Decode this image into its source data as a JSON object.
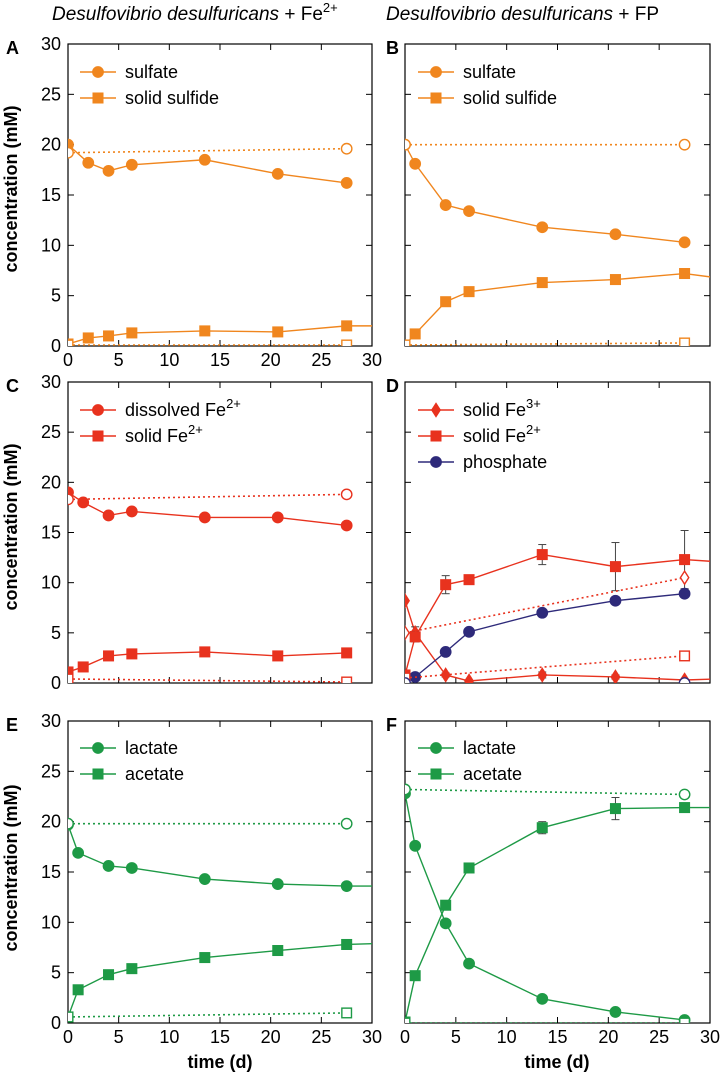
{
  "figure": {
    "titles": {
      "left": {
        "organism": "Desulfovibrio desulfuricans",
        "suffix": " + Fe",
        "sup": "2+"
      },
      "right": {
        "organism": "Desulfovibrio desulfuricans",
        "suffix": " + FP",
        "sup": ""
      }
    },
    "ylabel": "concentration (mM)",
    "xlabel": "time (d)",
    "colors": {
      "orange": "#f0861e",
      "red": "#e8321e",
      "navy": "#2e2a7a",
      "green": "#1e9a46",
      "black": "#000000"
    }
  },
  "chart_data": [
    {
      "panel": "A",
      "type": "line",
      "color_key": "orange",
      "xlim": [
        0,
        30
      ],
      "ylim": [
        0,
        30
      ],
      "xticks": [
        "0",
        "5",
        "10",
        "15",
        "20",
        "25",
        "30"
      ],
      "yticks": [
        "0",
        "5",
        "10",
        "15",
        "20",
        "25",
        "30"
      ],
      "series": [
        {
          "name": "sulfate",
          "marker": "circle",
          "filled": true,
          "line": "solid",
          "legend": true,
          "x": [
            0,
            2,
            4,
            6.3,
            13.5,
            20.7,
            27.5
          ],
          "y": [
            20,
            18.2,
            17.4,
            18,
            18.5,
            17.1,
            16.2
          ]
        },
        {
          "name": "solid sulfide",
          "marker": "square",
          "filled": true,
          "line": "solid",
          "legend": true,
          "x": [
            0,
            2,
            4,
            6.3,
            13.5,
            20.7,
            27.5,
            30.5
          ],
          "y": [
            0.2,
            0.8,
            1,
            1.3,
            1.5,
            1.4,
            2,
            2
          ]
        },
        {
          "name": "sulfate control",
          "marker": "circle",
          "filled": false,
          "line": "dotted",
          "legend": false,
          "x": [
            0,
            27.5
          ],
          "y": [
            19.2,
            19.6
          ]
        },
        {
          "name": "solid sulfide control",
          "marker": "square",
          "filled": false,
          "line": "dotted",
          "legend": false,
          "x": [
            0,
            27.5
          ],
          "y": [
            0.1,
            0.1
          ]
        }
      ]
    },
    {
      "panel": "B",
      "type": "line",
      "color_key": "orange",
      "xlim": [
        0,
        30
      ],
      "ylim": [
        0,
        30
      ],
      "series": [
        {
          "name": "sulfate",
          "marker": "circle",
          "filled": true,
          "line": "solid",
          "legend": true,
          "x": [
            0,
            1,
            4,
            6.3,
            13.5,
            20.7,
            27.5
          ],
          "y": [
            20,
            18.1,
            14,
            13.4,
            11.8,
            11.1,
            10.3
          ]
        },
        {
          "name": "solid sulfide",
          "marker": "square",
          "filled": true,
          "line": "solid",
          "legend": true,
          "x": [
            0,
            1,
            4,
            6.3,
            13.5,
            20.7,
            27.5,
            30.5
          ],
          "y": [
            0.1,
            1.2,
            4.4,
            5.4,
            6.3,
            6.6,
            7.2,
            6.8
          ]
        },
        {
          "name": "sulfate control",
          "marker": "circle",
          "filled": false,
          "line": "dotted",
          "legend": false,
          "x": [
            0,
            27.5
          ],
          "y": [
            20,
            20
          ]
        },
        {
          "name": "solid sulfide control",
          "marker": "square",
          "filled": false,
          "line": "dotted",
          "legend": false,
          "x": [
            0,
            27.5
          ],
          "y": [
            0.1,
            0.3
          ]
        }
      ]
    },
    {
      "panel": "C",
      "type": "line",
      "color_key": "red",
      "xlim": [
        0,
        30
      ],
      "ylim": [
        0,
        30
      ],
      "yticks": [
        "0",
        "5",
        "10",
        "15",
        "20",
        "25",
        "30"
      ],
      "series": [
        {
          "name": "dissolved Fe",
          "sup": "2+",
          "marker": "circle",
          "filled": true,
          "line": "solid",
          "legend": true,
          "x": [
            0,
            1.5,
            4,
            6.3,
            13.5,
            20.7,
            27.5
          ],
          "y": [
            19,
            18,
            16.7,
            17.1,
            16.5,
            16.5,
            15.7
          ]
        },
        {
          "name": "solid Fe",
          "sup": "2+",
          "marker": "square",
          "filled": true,
          "line": "solid",
          "legend": true,
          "x": [
            0,
            1.5,
            4,
            6.3,
            13.5,
            20.7,
            27.5
          ],
          "y": [
            1.1,
            1.6,
            2.7,
            2.9,
            3.1,
            2.7,
            3
          ]
        },
        {
          "name": "dissolved Fe control",
          "marker": "circle",
          "filled": false,
          "line": "dotted",
          "legend": false,
          "x": [
            0,
            27.5
          ],
          "y": [
            18.3,
            18.8
          ]
        },
        {
          "name": "solid Fe control",
          "marker": "square",
          "filled": false,
          "line": "dotted",
          "legend": false,
          "x": [
            0,
            27.5
          ],
          "y": [
            0.4,
            0.1
          ]
        }
      ]
    },
    {
      "panel": "D",
      "type": "line",
      "color_key": "red",
      "xlim": [
        0,
        30
      ],
      "ylim": [
        0,
        30
      ],
      "series": [
        {
          "name": "solid Fe",
          "sup": "3+",
          "marker": "diamond",
          "filled": true,
          "line": "solid",
          "legend": true,
          "color_key": "red",
          "x": [
            0,
            1,
            4,
            6.3,
            13.5,
            20.7,
            27.5,
            30.5
          ],
          "y": [
            8.2,
            5,
            0.8,
            0.2,
            0.8,
            0.6,
            0.3,
            0.4
          ],
          "err": [
            0,
            0.6,
            0.2,
            0,
            0.3,
            0.2,
            0,
            0
          ]
        },
        {
          "name": "solid Fe",
          "sup": "2+",
          "marker": "square",
          "filled": true,
          "line": "solid",
          "legend": true,
          "color_key": "red",
          "x": [
            0,
            1,
            4,
            6.3,
            13.5,
            20.7,
            27.5,
            30.5
          ],
          "y": [
            0.8,
            4.6,
            9.8,
            10.3,
            12.8,
            11.6,
            12.3,
            12.1
          ],
          "err": [
            0,
            0.5,
            0.9,
            0.4,
            1,
            2.4,
            2.9,
            0
          ]
        },
        {
          "name": "phosphate",
          "marker": "circle",
          "filled": true,
          "line": "solid",
          "legend": true,
          "color_key": "navy",
          "x": [
            0,
            1,
            4,
            6.3,
            13.5,
            20.7,
            27.5
          ],
          "y": [
            0,
            0.6,
            3.1,
            5.1,
            7,
            8.2,
            8.9
          ],
          "err": [
            0,
            0,
            0,
            0,
            0,
            0,
            0
          ]
        },
        {
          "name": "solid Fe3+ control",
          "marker": "diamond",
          "filled": false,
          "line": "dotted",
          "legend": false,
          "color_key": "red",
          "x": [
            0,
            27.5
          ],
          "y": [
            5,
            10.5
          ]
        },
        {
          "name": "solid Fe2+ control",
          "marker": "square",
          "filled": false,
          "line": "dotted",
          "legend": false,
          "color_key": "red",
          "x": [
            0,
            27.5
          ],
          "y": [
            0.5,
            2.7
          ]
        },
        {
          "name": "phosphate control",
          "marker": "circle",
          "filled": false,
          "line": "none",
          "legend": false,
          "color_key": "navy",
          "x": [
            0,
            27.5
          ],
          "y": [
            0,
            0
          ]
        }
      ]
    },
    {
      "panel": "E",
      "type": "line",
      "color_key": "green",
      "xlim": [
        0,
        30
      ],
      "ylim": [
        0,
        30
      ],
      "xticks": [
        "0",
        "5",
        "10",
        "15",
        "20",
        "25",
        "30"
      ],
      "yticks": [
        "0",
        "5",
        "10",
        "15",
        "20",
        "25",
        "30"
      ],
      "series": [
        {
          "name": "lactate",
          "marker": "circle",
          "filled": true,
          "line": "solid",
          "legend": true,
          "x": [
            0,
            1,
            4,
            6.3,
            13.5,
            20.7,
            27.5,
            30.5
          ],
          "y": [
            19.7,
            16.9,
            15.6,
            15.4,
            14.3,
            13.8,
            13.6,
            13.6
          ]
        },
        {
          "name": "acetate",
          "marker": "square",
          "filled": true,
          "line": "solid",
          "legend": true,
          "x": [
            0,
            1,
            4,
            6.3,
            13.5,
            20.7,
            27.5,
            30.5
          ],
          "y": [
            0.6,
            3.3,
            4.8,
            5.4,
            6.5,
            7.2,
            7.8,
            7.9
          ]
        },
        {
          "name": "lactate control",
          "marker": "circle",
          "filled": false,
          "line": "dotted",
          "legend": false,
          "x": [
            0,
            27.5
          ],
          "y": [
            19.8,
            19.8
          ]
        },
        {
          "name": "acetate control",
          "marker": "square",
          "filled": false,
          "line": "dotted",
          "legend": false,
          "x": [
            0,
            27.5
          ],
          "y": [
            0.6,
            1
          ]
        }
      ]
    },
    {
      "panel": "F",
      "type": "line",
      "color_key": "green",
      "xlim": [
        0,
        30
      ],
      "ylim": [
        0,
        30
      ],
      "xticks": [
        "0",
        "5",
        "10",
        "15",
        "20",
        "25",
        "30"
      ],
      "series": [
        {
          "name": "lactate",
          "marker": "circle",
          "filled": true,
          "line": "solid",
          "legend": true,
          "x": [
            0,
            1,
            4,
            6.3,
            13.5,
            20.7,
            27.5
          ],
          "y": [
            22.8,
            17.6,
            9.9,
            5.9,
            2.4,
            1.1,
            0.3
          ],
          "err": [
            0,
            0,
            0,
            0,
            0,
            0,
            0
          ]
        },
        {
          "name": "acetate",
          "marker": "square",
          "filled": true,
          "line": "solid",
          "legend": true,
          "x": [
            0,
            1,
            4,
            6.3,
            13.5,
            20.7,
            27.5,
            30.5
          ],
          "y": [
            0.1,
            4.7,
            11.7,
            15.4,
            19.4,
            21.3,
            21.4,
            21.4
          ],
          "err": [
            0,
            0,
            0,
            0,
            0.6,
            1.1,
            0,
            0
          ]
        },
        {
          "name": "lactate control",
          "marker": "circle",
          "filled": false,
          "line": "dotted",
          "legend": false,
          "x": [
            0,
            27.5
          ],
          "y": [
            23.2,
            22.7
          ]
        },
        {
          "name": "acetate control",
          "marker": "square",
          "filled": false,
          "line": "dotted",
          "legend": false,
          "x": [
            0,
            27.5
          ],
          "y": [
            0,
            0
          ]
        }
      ]
    }
  ]
}
